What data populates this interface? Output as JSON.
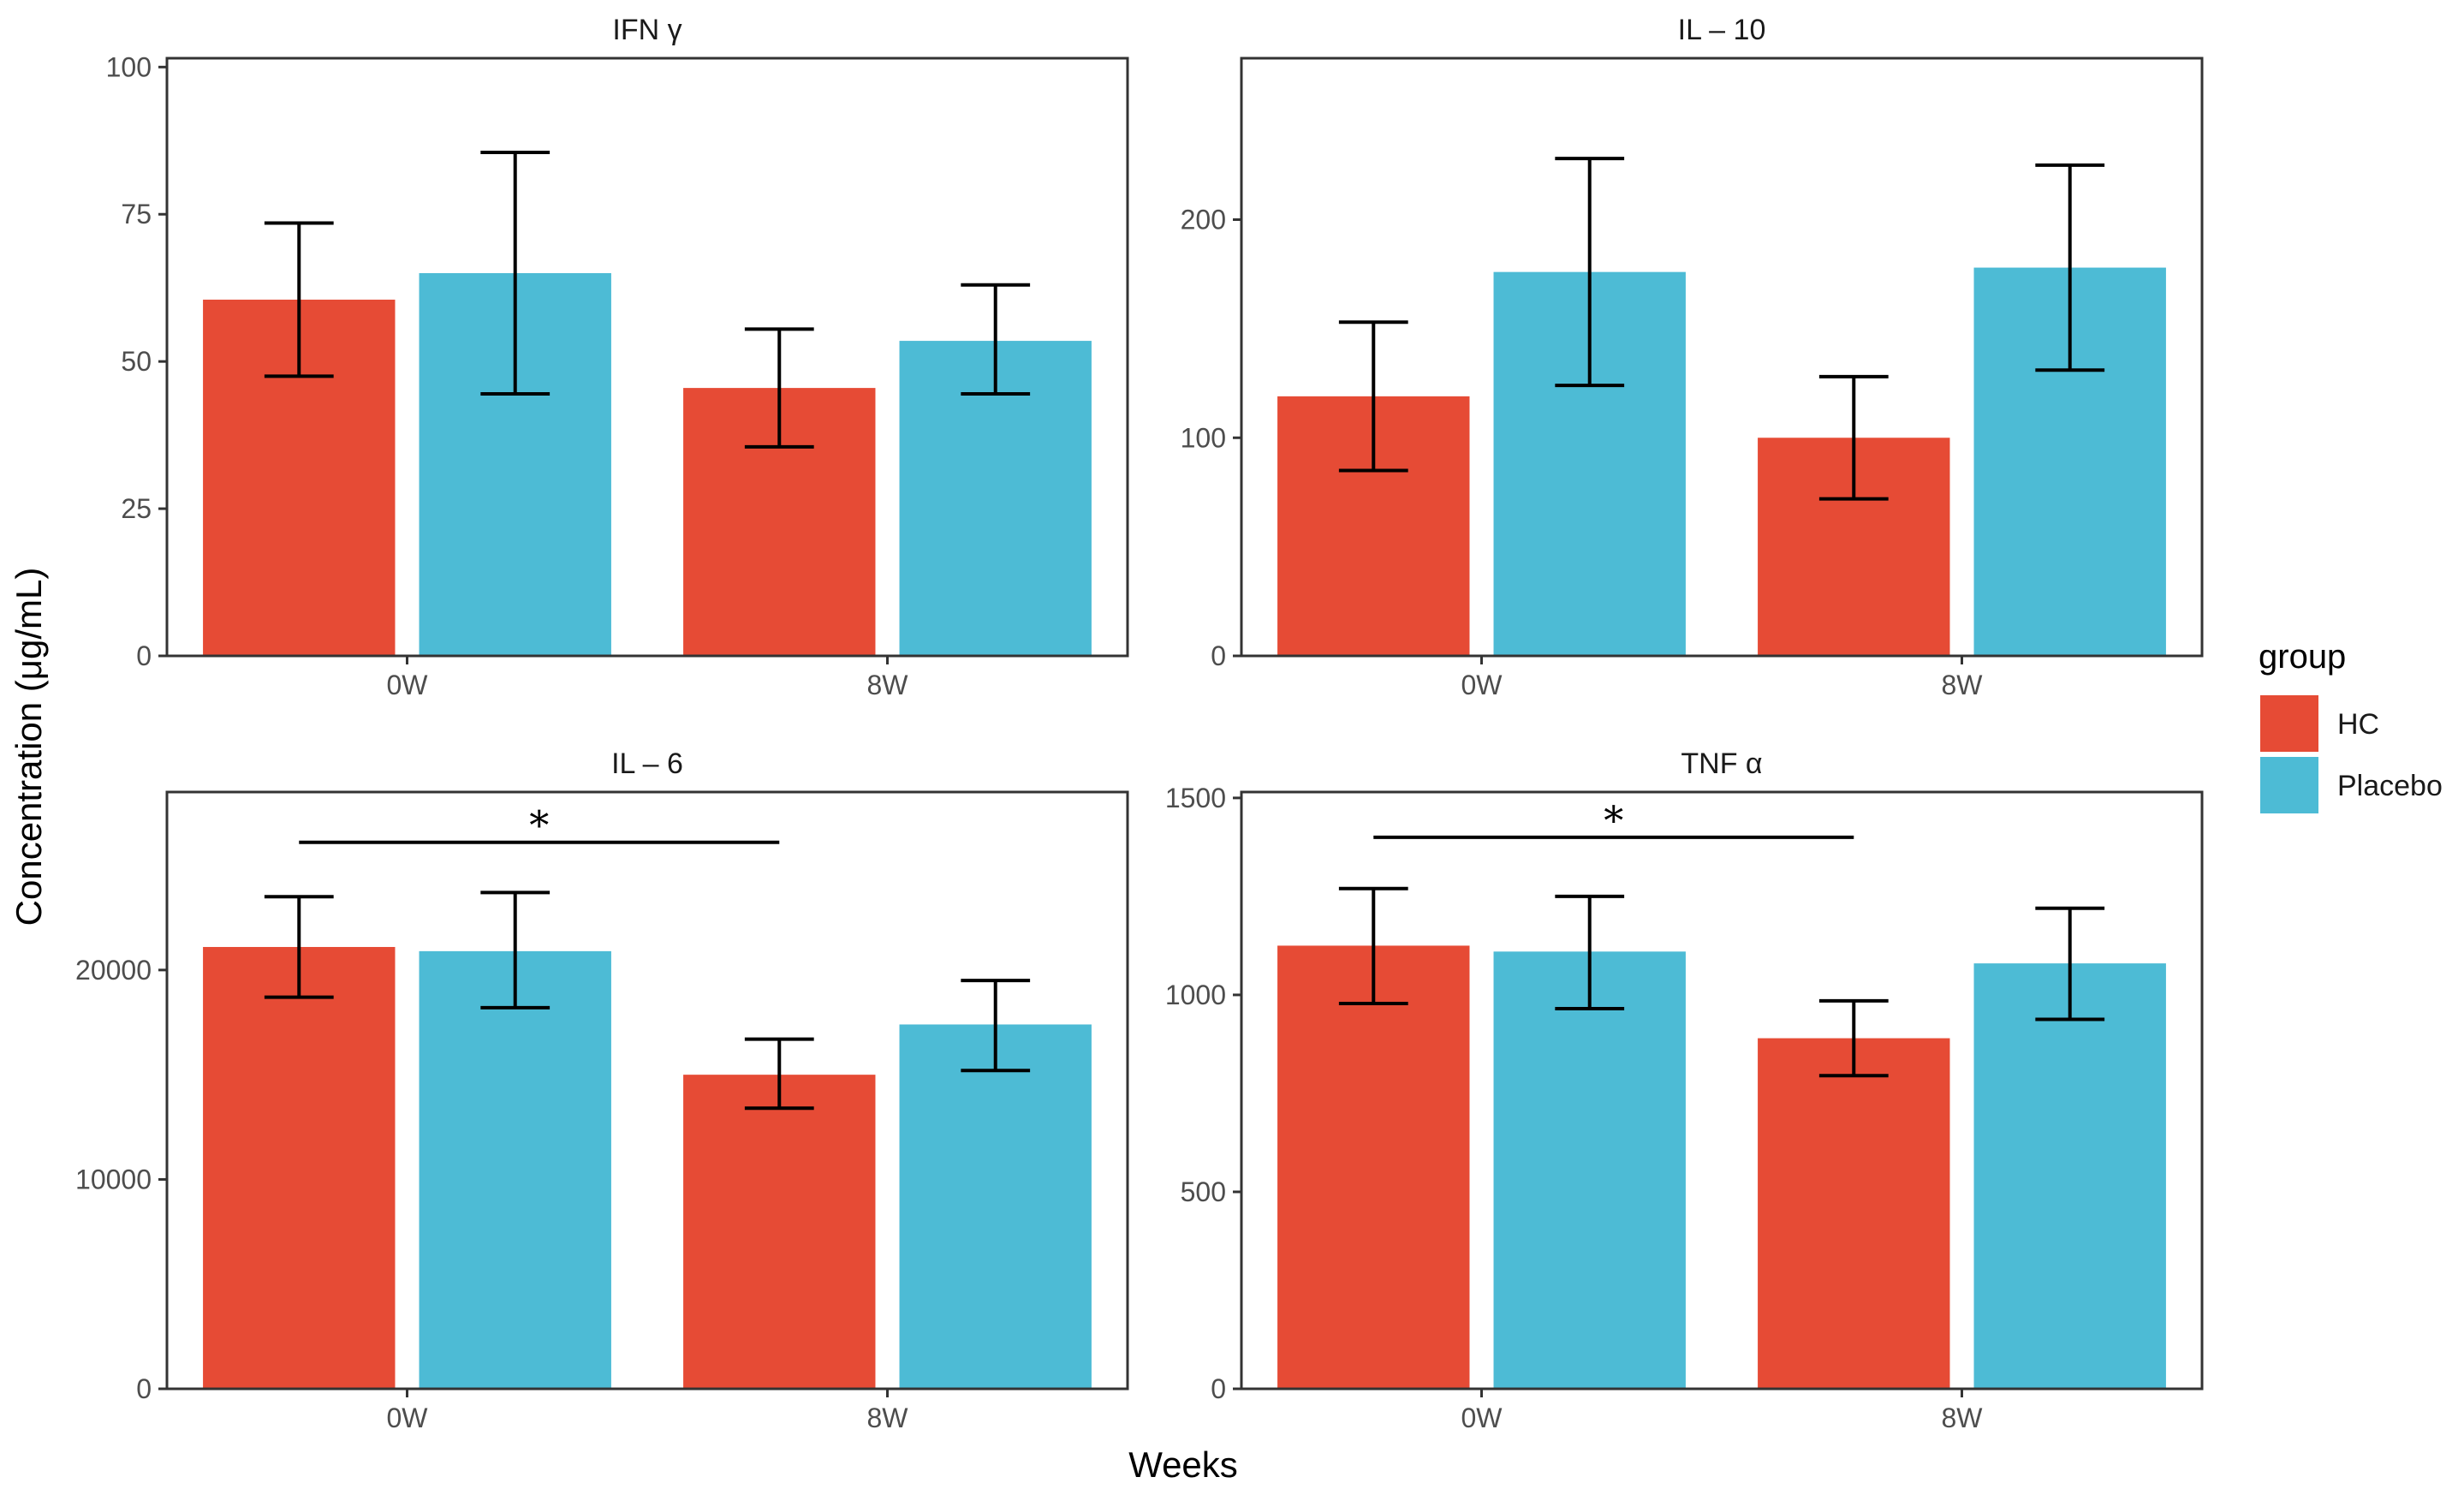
{
  "colors": {
    "HC": "#E64B35",
    "Placebo": "#4DBBD5",
    "axis": "#333333",
    "error": "#000000"
  },
  "figure": {
    "xlabel": "Weeks",
    "ylabel": "Concentration (μg/mL)"
  },
  "legend": {
    "title": "group",
    "items": [
      {
        "label": "HC",
        "color": "#E64B35"
      },
      {
        "label": "Placebo",
        "color": "#4DBBD5"
      }
    ]
  },
  "chart_data": [
    {
      "type": "bar",
      "title": "IFN γ",
      "categories": [
        "0W",
        "8W"
      ],
      "series": [
        {
          "name": "HC",
          "values": [
            60.5,
            45.5
          ],
          "err_low": [
            47.5,
            35.5
          ],
          "err_high": [
            73.5,
            55.5
          ]
        },
        {
          "name": "Placebo",
          "values": [
            65,
            53.5
          ],
          "err_low": [
            44.5,
            44.5
          ],
          "err_high": [
            85.5,
            63
          ]
        }
      ],
      "ylim": [
        0,
        101.5
      ],
      "yticks": [
        0,
        25,
        50,
        75,
        100
      ],
      "ytick_labels": [
        "0",
        "25",
        "50",
        "75",
        "100"
      ],
      "annotation": null
    },
    {
      "type": "bar",
      "title": "IL – 10",
      "categories": [
        "0W",
        "8W"
      ],
      "series": [
        {
          "name": "HC",
          "values": [
            119,
            100
          ],
          "err_low": [
            85,
            72
          ],
          "err_high": [
            153,
            128
          ]
        },
        {
          "name": "Placebo",
          "values": [
            176,
            178
          ],
          "err_low": [
            124,
            131
          ],
          "err_high": [
            228,
            225
          ]
        }
      ],
      "ylim": [
        0,
        274
      ],
      "yticks": [
        0,
        100,
        200
      ],
      "ytick_labels": [
        "0",
        "100",
        "200"
      ],
      "annotation": null
    },
    {
      "type": "bar",
      "title": "IL – 6",
      "categories": [
        "0W",
        "8W"
      ],
      "series": [
        {
          "name": "HC",
          "values": [
            21100,
            15000
          ],
          "err_low": [
            18700,
            13400
          ],
          "err_high": [
            23500,
            16700
          ]
        },
        {
          "name": "Placebo",
          "values": [
            20900,
            17400
          ],
          "err_low": [
            18200,
            15200
          ],
          "err_high": [
            23700,
            19500
          ]
        }
      ],
      "ylim": [
        0,
        28500
      ],
      "yticks": [
        0,
        10000,
        20000
      ],
      "ytick_labels": [
        "0",
        "10000",
        "20000"
      ],
      "annotation": {
        "text": "*",
        "from": "0W-HC",
        "to": "8W-HC",
        "y": 26100
      }
    },
    {
      "type": "bar",
      "title": "TNF α",
      "categories": [
        "0W",
        "8W"
      ],
      "series": [
        {
          "name": "HC",
          "values": [
            1125,
            890
          ],
          "err_low": [
            978,
            795
          ],
          "err_high": [
            1270,
            985
          ]
        },
        {
          "name": "Placebo",
          "values": [
            1110,
            1080
          ],
          "err_low": [
            965,
            938
          ],
          "err_high": [
            1250,
            1220
          ]
        }
      ],
      "ylim": [
        0,
        1515
      ],
      "yticks": [
        0,
        500,
        1000,
        1500
      ],
      "ytick_labels": [
        "0",
        "500",
        "1000",
        "1500"
      ],
      "annotation": {
        "text": "*",
        "from": "0W-HC",
        "to": "8W-HC",
        "y": 1400
      }
    }
  ]
}
